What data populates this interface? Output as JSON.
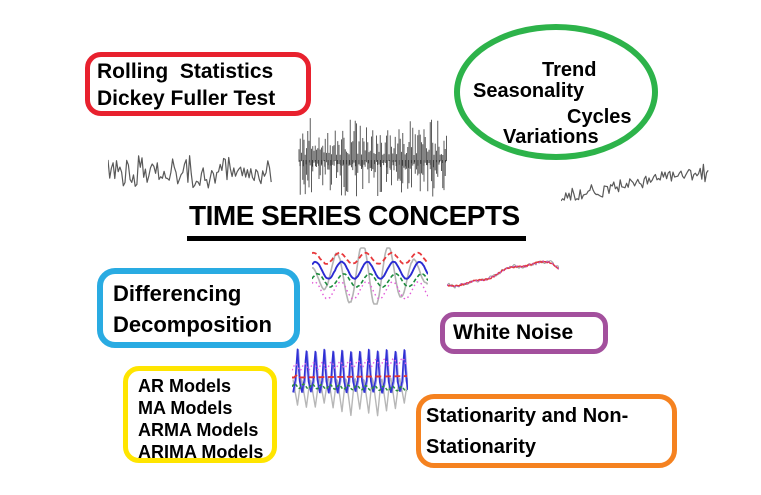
{
  "title": {
    "text": "TIME SERIES CONCEPTS",
    "underline_color": "#000000"
  },
  "palette": {
    "background": "#ffffff",
    "text": "#000000"
  },
  "boxes": {
    "red": {
      "border_color": "#e8212e",
      "lines": [
        "Rolling  Statistics",
        "Dickey Fuller Test"
      ]
    },
    "green_oval": {
      "border_color": "#2db34a",
      "lines": [
        "Trend",
        "Seasonality",
        "Cycles",
        "Variations"
      ]
    },
    "blue": {
      "border_color": "#29abe2",
      "lines": [
        "Differencing",
        "Decomposition"
      ]
    },
    "purple": {
      "border_color": "#a3509d",
      "lines": [
        "White Noise"
      ]
    },
    "yellow": {
      "border_color": "#ffe500",
      "lines": [
        "AR Models",
        "MA Models",
        "ARMA Models",
        "ARIMA Models"
      ]
    },
    "orange": {
      "border_color": "#f58220",
      "lines": [
        "Stationarity and Non-",
        "Stationarity"
      ]
    }
  },
  "plots": {
    "noise_left": {
      "label": "stationary-noise-sparkline",
      "color": "#595959"
    },
    "noise_dense": {
      "label": "white-noise-dense-sparkline",
      "color": "#4a4a4a",
      "tick_color": "#303030"
    },
    "noise_trend": {
      "label": "upward-trend-noise-sparkline",
      "color": "#595959"
    },
    "seasonal": {
      "label": "seasonal-decomposition-sparkline",
      "gray": "#b4b4b4",
      "red": "#e8393c",
      "blue": "#2b2bd2",
      "green": "#1e8c3e",
      "magenta": "#e35ad9"
    },
    "rolling_mean": {
      "label": "rolling-mean-trend-sparkline",
      "gray": "#a0a0a0",
      "red": "#e03a3a",
      "magenta": "#c44bd0"
    },
    "spiky": {
      "label": "seasonal-spikes-sparkline",
      "blue": "#3030d5",
      "gray": "#b7b7b7",
      "magenta": "#e768e2",
      "red": "#e23535",
      "green": "#2b8f3e"
    }
  }
}
